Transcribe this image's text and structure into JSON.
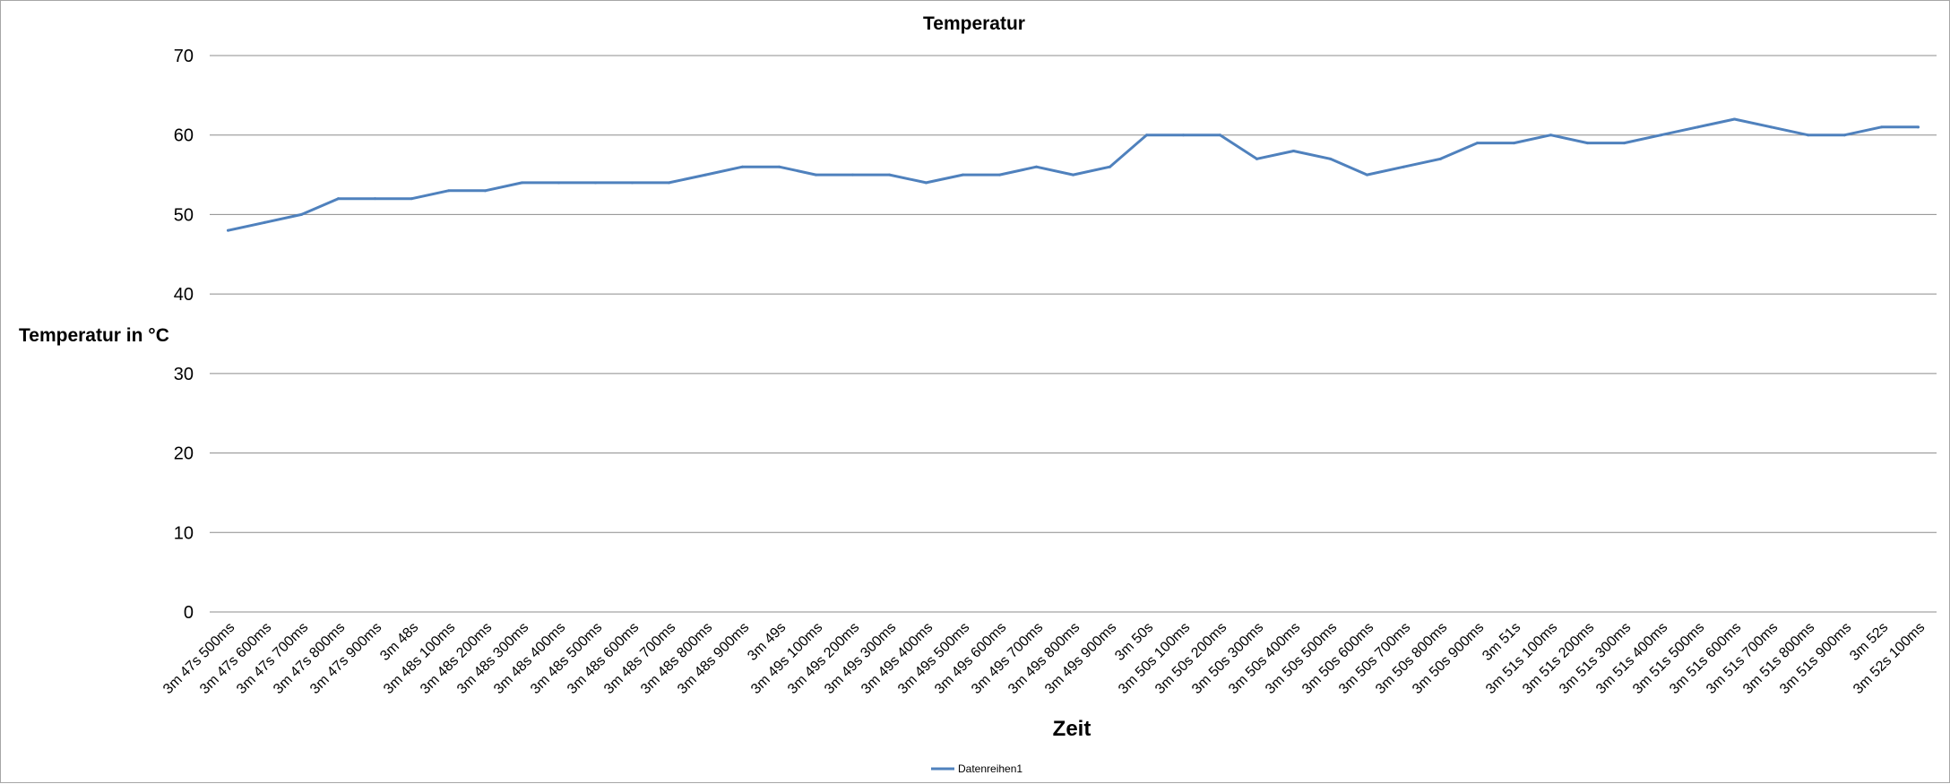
{
  "chart_data": {
    "type": "line",
    "title": "Temperatur",
    "xlabel": "Zeit",
    "ylabel": "Temperatur in °C",
    "ylim": [
      0,
      70
    ],
    "yticks": [
      0,
      10,
      20,
      30,
      40,
      50,
      60,
      70
    ],
    "grid": true,
    "legend_position": "bottom",
    "categories": [
      "3m 47s 500ms",
      "3m 47s 600ms",
      "3m 47s 700ms",
      "3m 47s 800ms",
      "3m 47s 900ms",
      "3m 48s",
      "3m 48s 100ms",
      "3m 48s 200ms",
      "3m 48s 300ms",
      "3m 48s 400ms",
      "3m 48s 500ms",
      "3m 48s 600ms",
      "3m 48s 700ms",
      "3m 48s 800ms",
      "3m 48s 900ms",
      "3m 49s",
      "3m 49s 100ms",
      "3m 49s 200ms",
      "3m 49s 300ms",
      "3m 49s 400ms",
      "3m 49s 500ms",
      "3m 49s 600ms",
      "3m 49s 700ms",
      "3m 49s 800ms",
      "3m 49s 900ms",
      "3m 50s",
      "3m 50s 100ms",
      "3m 50s 200ms",
      "3m 50s 300ms",
      "3m 50s 400ms",
      "3m 50s 500ms",
      "3m 50s 600ms",
      "3m 50s 700ms",
      "3m 50s 800ms",
      "3m 50s 900ms",
      "3m 51s",
      "3m 51s 100ms",
      "3m 51s 200ms",
      "3m 51s 300ms",
      "3m 51s 400ms",
      "3m 51s 500ms",
      "3m 51s 600ms",
      "3m 51s 700ms",
      "3m 51s 800ms",
      "3m 51s 900ms",
      "3m 52s",
      "3m 52s 100ms"
    ],
    "series": [
      {
        "name": "Datenreihen1",
        "color": "#4f81bd",
        "values": [
          48,
          49,
          50,
          52,
          52,
          52,
          53,
          53,
          54,
          54,
          54,
          54,
          54,
          55,
          56,
          56,
          55,
          55,
          55,
          54,
          55,
          55,
          56,
          55,
          56,
          60,
          60,
          60,
          57,
          58,
          57,
          55,
          56,
          57,
          59,
          59,
          60,
          59,
          59,
          60,
          61,
          62,
          61,
          60,
          60,
          61,
          61
        ]
      }
    ]
  }
}
